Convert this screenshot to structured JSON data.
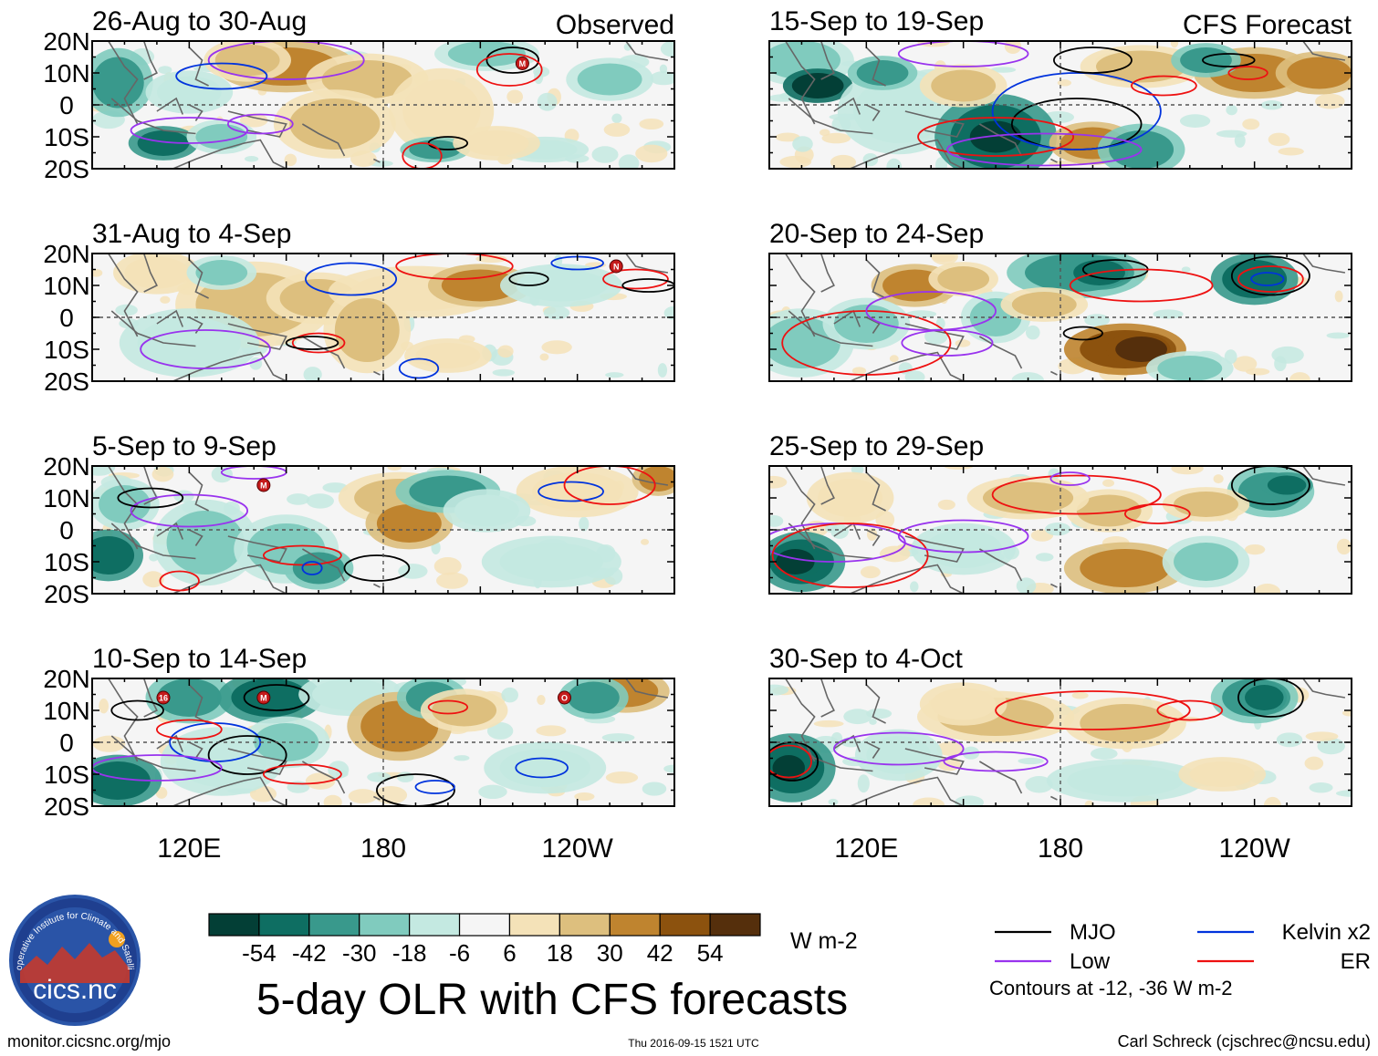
{
  "chart_data": {
    "type": "heatmap",
    "title": "5-day OLR with CFS forecasts",
    "variable": "OLR anomaly",
    "units": "W m-2",
    "y_tick_labels": [
      "20N",
      "10N",
      "0",
      "10S",
      "20S"
    ],
    "x_tick_labels": [
      "120E",
      "180",
      "120W"
    ],
    "lon_range": [
      90,
      270
    ],
    "lat_range": [
      -20,
      20
    ],
    "observed_label": "Observed",
    "forecast_label": "CFS Forecast",
    "panels": [
      {
        "period": "26-Aug to 30-Aug",
        "source": "Observed",
        "storms": [
          {
            "label": "M",
            "lon": 223,
            "lat": 13
          }
        ]
      },
      {
        "period": "31-Aug to 4-Sep",
        "source": "Observed",
        "storms": [
          {
            "label": "N",
            "lon": 252,
            "lat": 16
          }
        ]
      },
      {
        "period": "5-Sep to 9-Sep",
        "source": "Observed",
        "storms": [
          {
            "label": "M",
            "lon": 143,
            "lat": 14
          }
        ]
      },
      {
        "period": "10-Sep to 14-Sep",
        "source": "Observed",
        "storms": [
          {
            "label": "16",
            "lon": 112,
            "lat": 14
          },
          {
            "label": "M",
            "lon": 143,
            "lat": 14
          },
          {
            "label": "O",
            "lon": 236,
            "lat": 14
          }
        ]
      },
      {
        "period": "15-Sep to 19-Sep",
        "source": "CFS Forecast",
        "storms": []
      },
      {
        "period": "20-Sep to 24-Sep",
        "source": "CFS Forecast",
        "storms": []
      },
      {
        "period": "25-Sep to 29-Sep",
        "source": "CFS Forecast",
        "storms": []
      },
      {
        "period": "30-Sep to 4-Oct",
        "source": "CFS Forecast",
        "storms": []
      }
    ],
    "colorbar": {
      "levels": [
        -60,
        -48,
        -36,
        -24,
        -12,
        0,
        12,
        24,
        36,
        48,
        60
      ],
      "tick_labels": [
        "-54",
        "-42",
        "-30",
        "-18",
        "-6",
        "6",
        "18",
        "30",
        "42",
        "54"
      ],
      "colors": [
        "#033f36",
        "#0e6e62",
        "#39998c",
        "#80cbbe",
        "#c4e9e1",
        "#f5f5f5",
        "#f4e2b8",
        "#ddbf7e",
        "#bf842f",
        "#8c520e",
        "#552f0c"
      ],
      "units_label": "W m-2"
    },
    "legend": [
      {
        "label": "MJO",
        "color": "#000000"
      },
      {
        "label": "Kelvin x2",
        "color": "#0033dd"
      },
      {
        "label": "Low",
        "color": "#9933ee"
      },
      {
        "label": "ER",
        "color": "#ee1111"
      }
    ],
    "contour_note": "Contours at -12, -36 W m-2"
  },
  "logo": {
    "text": "cics.nc",
    "ring_text": "Cooperative Institute for Climate and Satellites"
  },
  "footer": {
    "left": "monitor.cicsnc.org/mjo",
    "center": "Thu 2016-09-15 1521 UTC",
    "right": "Carl Schreck (cjschrec@ncsu.edu)"
  }
}
